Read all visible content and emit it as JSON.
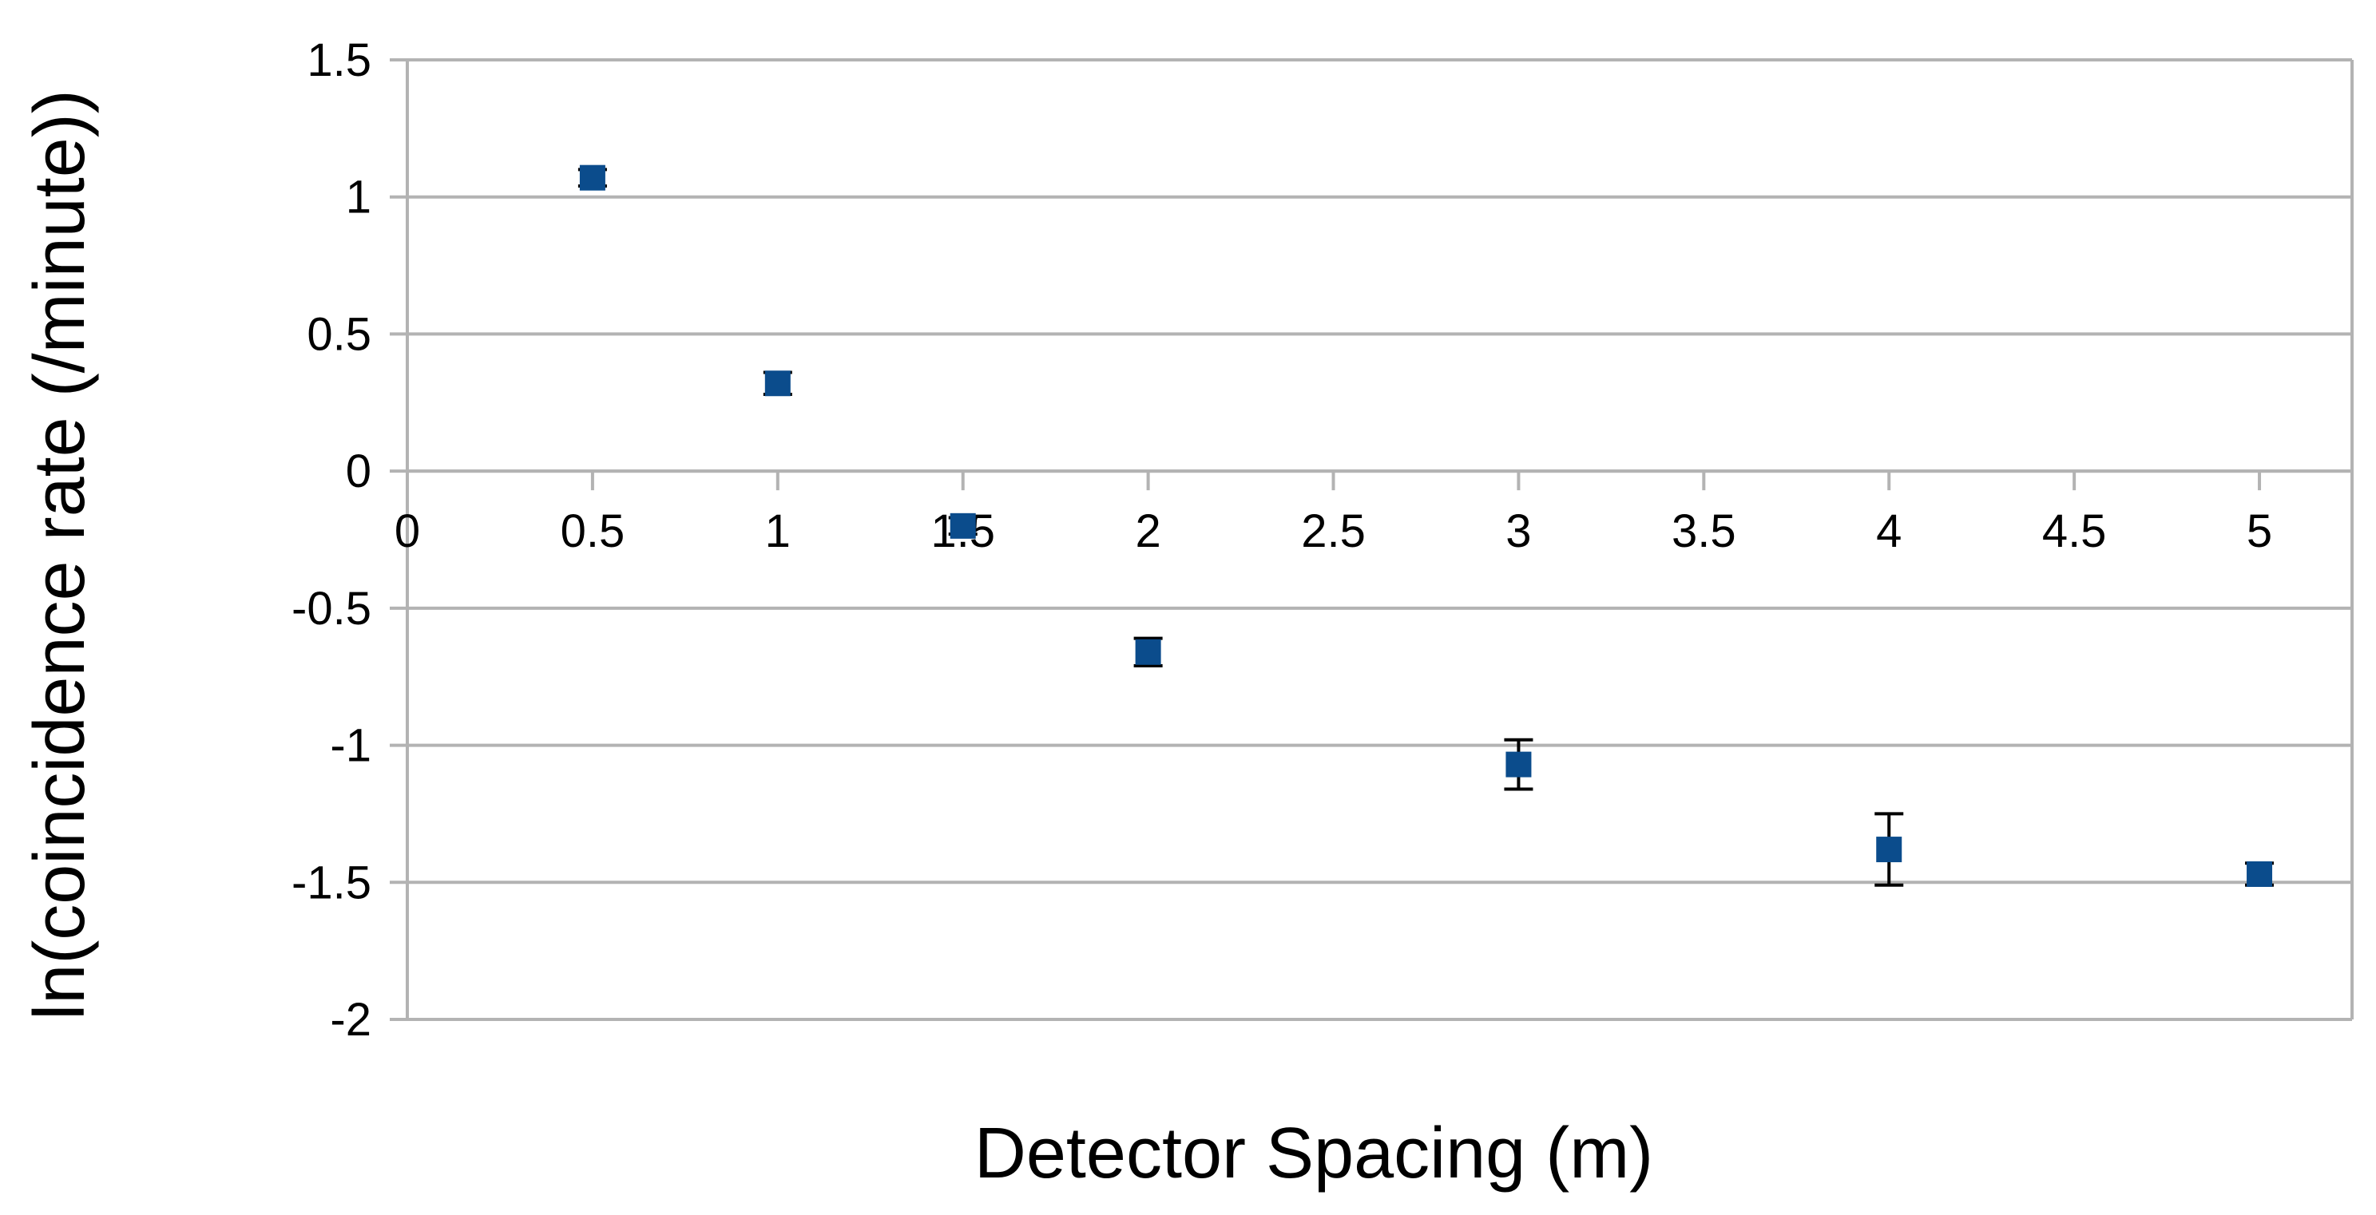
{
  "chart_data": {
    "type": "scatter",
    "xlabel": "Detector Spacing (m)",
    "ylabel": "ln(coincidence rate (/minute))",
    "xlim": [
      0,
      5.25
    ],
    "ylim": [
      -2,
      1.5
    ],
    "x_ticks": [
      "0",
      "0.5",
      "1",
      "1.5",
      "2",
      "2.5",
      "3",
      "3.5",
      "4",
      "4.5",
      "5"
    ],
    "y_ticks": [
      "1.5",
      "1",
      "0.5",
      "0",
      "-0.5",
      "-1",
      "-1.5",
      "-2"
    ],
    "grid": true,
    "series": [
      {
        "x": [
          0.5,
          1,
          1.5,
          2,
          3,
          4,
          5
        ],
        "y": [
          1.07,
          0.32,
          -0.2,
          -0.66,
          -1.07,
          -1.38,
          -1.47
        ],
        "y_error": [
          0.03,
          0.04,
          0.03,
          0.05,
          0.09,
          0.13,
          0.04
        ]
      }
    ],
    "colors": {
      "marker": "#0b4c8c",
      "error_bar": "#000000",
      "grid": "#b3b3b3"
    }
  }
}
